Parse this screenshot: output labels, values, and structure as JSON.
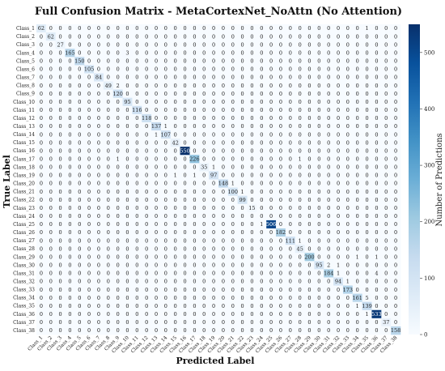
{
  "chart_data": {
    "type": "heatmap",
    "title": "Full Confusion Matrix - MetaCortexNet_NoAttn (No Attention)",
    "xlabel": "Predicted Label",
    "ylabel": "True Label",
    "colorbar_label": "Number of Predictions",
    "colorbar_ticks": [
      0,
      100,
      200,
      300,
      400,
      500
    ],
    "colorbar_range": [
      0,
      550
    ],
    "colormap": [
      "#f7fbff",
      "#deebf7",
      "#c6dbef",
      "#9ecae1",
      "#6baed6",
      "#4292c6",
      "#2171b5",
      "#08519c",
      "#08306b"
    ],
    "labels": [
      "Class_1",
      "Class_2",
      "Class_3",
      "Class_4",
      "Class_5",
      "Class_6",
      "Class_7",
      "Class_8",
      "Class_9",
      "Class_10",
      "Class_11",
      "Class_12",
      "Class_13",
      "Class_14",
      "Class_15",
      "Class_16",
      "Class_17",
      "Class_18",
      "Class_19",
      "Class_20",
      "Class_21",
      "Class_22",
      "Class_23",
      "Class_24",
      "Class_25",
      "Class_26",
      "Class_27",
      "Class_28",
      "Class_29",
      "Class_30",
      "Class_31",
      "Class_32",
      "Class_33",
      "Class_34",
      "Class_35",
      "Class_36",
      "Class_37",
      "Class_38"
    ],
    "diagonal": [
      62,
      62,
      27,
      165,
      150,
      105,
      84,
      49,
      120,
      95,
      116,
      118,
      137,
      107,
      42,
      550,
      226,
      35,
      97,
      148,
      100,
      99,
      15,
      0,
      506,
      182,
      111,
      45,
      200,
      95,
      184,
      94,
      173,
      161,
      139,
      533,
      37,
      158
    ],
    "off_diagonal": [
      [
        0,
        34,
        1
      ],
      [
        3,
        9,
        3
      ],
      [
        7,
        8,
        2
      ],
      [
        12,
        13,
        1
      ],
      [
        13,
        12,
        1
      ],
      [
        16,
        8,
        1
      ],
      [
        16,
        27,
        1
      ],
      [
        17,
        18,
        1
      ],
      [
        18,
        16,
        1
      ],
      [
        18,
        14,
        1
      ],
      [
        19,
        20,
        1
      ],
      [
        24,
        23,
        1
      ],
      [
        26,
        27,
        1
      ],
      [
        29,
        30,
        2
      ],
      [
        29,
        31,
        1
      ],
      [
        30,
        35,
        4
      ],
      [
        31,
        32,
        1
      ],
      [
        33,
        34,
        5
      ],
      [
        34,
        33,
        1
      ],
      [
        35,
        34,
        1
      ],
      [
        30,
        31,
        1
      ],
      [
        28,
        33,
        1
      ],
      [
        28,
        35,
        1
      ],
      [
        20,
        21,
        1
      ]
    ]
  }
}
